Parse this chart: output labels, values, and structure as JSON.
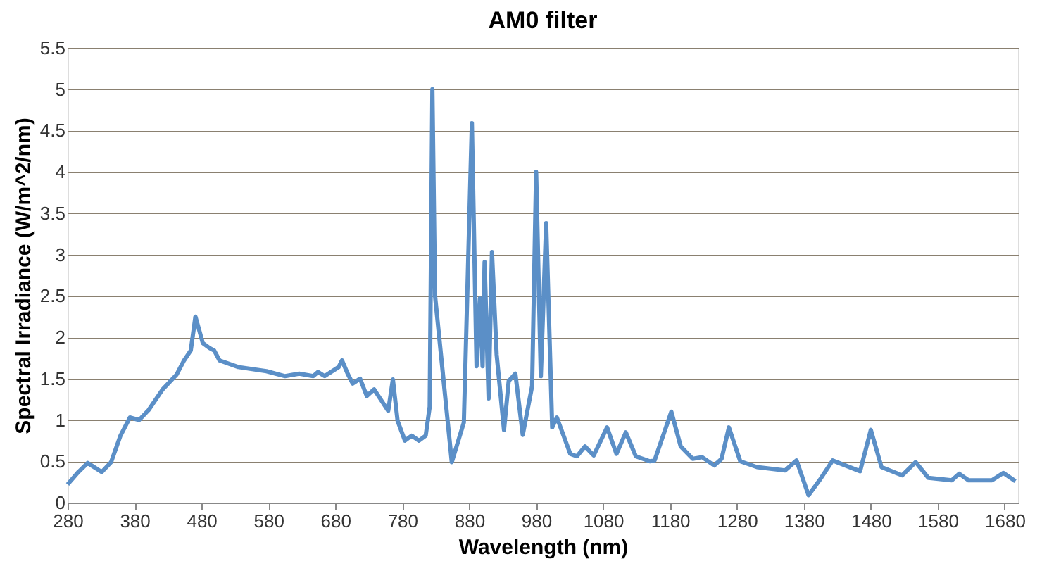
{
  "chart_data": {
    "type": "line",
    "title": "AM0 filter",
    "xlabel": "Wavelength (nm)",
    "ylabel": "Spectral Irradiance  (W/m^2/nm)",
    "xlim": [
      280,
      1700
    ],
    "xticks": [
      280,
      380,
      480,
      580,
      680,
      780,
      880,
      980,
      1080,
      1180,
      1280,
      1380,
      1480,
      1580,
      1680
    ],
    "ylim": [
      0,
      5.5
    ],
    "yticks": [
      0,
      0.5,
      1,
      1.5,
      2,
      2.5,
      3,
      3.5,
      4,
      4.5,
      5,
      5.5
    ],
    "grid": "y",
    "legend": false,
    "marker": "none",
    "line_style": "solid",
    "series": [
      {
        "color": "#5b8fc7",
        "x": [
          280,
          296,
          310,
          331,
          345,
          359,
          373,
          387,
          401,
          422,
          443,
          454,
          464,
          471,
          482,
          492,
          499,
          507,
          535,
          577,
          605,
          626,
          647,
          654,
          664,
          685,
          690,
          699,
          706,
          717,
          727,
          738,
          759,
          766,
          773,
          784,
          794,
          805,
          815,
          821,
          825,
          829,
          854,
          872,
          884,
          891,
          896,
          900,
          903,
          909,
          914,
          921,
          932,
          939,
          949,
          960,
          974,
          980,
          987,
          995,
          1004,
          1011,
          1031,
          1041,
          1053,
          1066,
          1086,
          1100,
          1114,
          1129,
          1150,
          1157,
          1182,
          1196,
          1214,
          1228,
          1246,
          1257,
          1268,
          1285,
          1310,
          1352,
          1369,
          1387,
          1405,
          1423,
          1464,
          1480,
          1496,
          1527,
          1547,
          1566,
          1601,
          1612,
          1626,
          1661,
          1678,
          1696
        ],
        "values": [
          0.22,
          0.37,
          0.48,
          0.37,
          0.49,
          0.81,
          1.03,
          1.0,
          1.12,
          1.37,
          1.55,
          1.72,
          1.84,
          2.25,
          1.93,
          1.87,
          1.84,
          1.72,
          1.64,
          1.59,
          1.53,
          1.56,
          1.53,
          1.58,
          1.53,
          1.64,
          1.72,
          1.55,
          1.44,
          1.5,
          1.29,
          1.37,
          1.11,
          1.49,
          0.99,
          0.75,
          0.81,
          0.75,
          0.81,
          1.16,
          5.0,
          2.5,
          0.49,
          0.97,
          4.59,
          1.65,
          2.47,
          1.65,
          2.91,
          1.26,
          3.03,
          1.79,
          0.88,
          1.47,
          1.56,
          0.82,
          1.41,
          4.0,
          1.53,
          3.38,
          0.91,
          1.03,
          0.59,
          0.56,
          0.68,
          0.57,
          0.91,
          0.59,
          0.85,
          0.56,
          0.5,
          0.51,
          1.1,
          0.68,
          0.53,
          0.55,
          0.45,
          0.53,
          0.91,
          0.5,
          0.43,
          0.39,
          0.51,
          0.09,
          0.29,
          0.51,
          0.38,
          0.88,
          0.43,
          0.33,
          0.49,
          0.3,
          0.27,
          0.35,
          0.27,
          0.27,
          0.36,
          0.26
        ]
      }
    ]
  }
}
